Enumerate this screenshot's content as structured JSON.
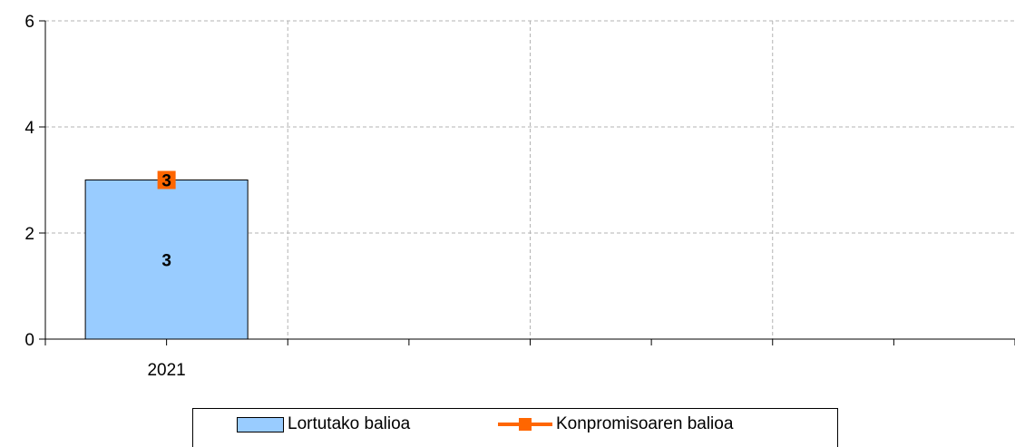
{
  "chart_data": {
    "type": "bar",
    "title": "",
    "xlabel": "",
    "ylabel": "",
    "categories": [
      "2021",
      "",
      "",
      ""
    ],
    "ylim": [
      0,
      6
    ],
    "yticks": [
      0,
      2,
      4,
      6
    ],
    "grid": true,
    "legend_position": "bottom",
    "series": [
      {
        "name": "Lortutako balioa",
        "kind": "bar",
        "color": "#99ccff",
        "values": [
          3,
          null,
          null,
          null
        ],
        "data_labels": [
          "3",
          null,
          null,
          null
        ]
      },
      {
        "name": "Konpromisoaren balioa",
        "kind": "line",
        "color": "#ff6600",
        "marker": "square",
        "values": [
          3,
          null,
          null,
          null
        ],
        "data_labels": [
          "3",
          null,
          null,
          null
        ]
      }
    ]
  }
}
